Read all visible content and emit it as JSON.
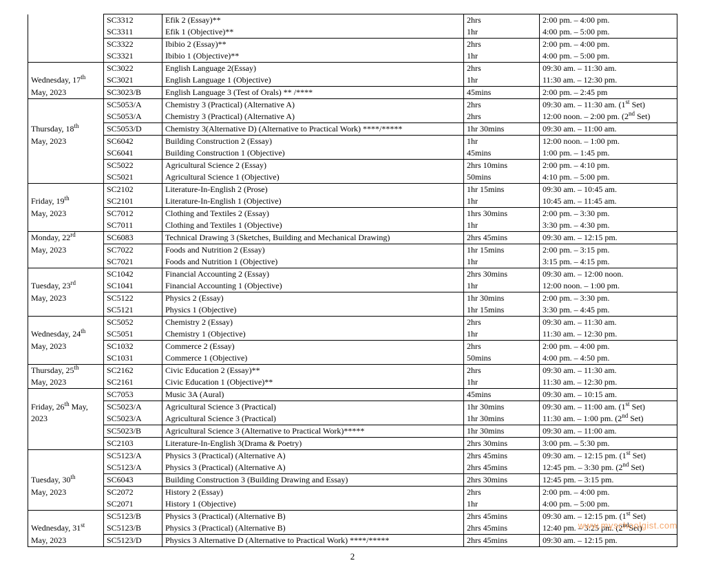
{
  "table": {
    "columns": [
      "date",
      "code",
      "subject",
      "duration",
      "time"
    ],
    "col_classes": [
      "col-date",
      "col-code",
      "col-subj",
      "col-dur",
      "col-time"
    ]
  },
  "rows": [
    {
      "date": "",
      "code": "SC3312",
      "subject": "Efik 2 (Essay)**",
      "dur": "2hrs",
      "time": "2:00 pm. – 4:00 pm.",
      "date_top": false,
      "date_bot": false
    },
    {
      "date": "",
      "code": "SC3311",
      "subject": "Efik 1 (Objective)**",
      "dur": "1hr",
      "time": "4:00 pm. – 5:00 pm.",
      "date_top": false,
      "date_bot": false,
      "group_end": true
    },
    {
      "date": "",
      "code": "SC3322",
      "subject": "Ibibio 2 (Essay)**",
      "dur": "2hrs",
      "time": "2:00 pm. – 4:00 pm.",
      "date_top": false,
      "date_bot": false
    },
    {
      "date": "",
      "code": "SC3321",
      "subject": "Ibibio 1 (Objective)**",
      "dur": "1hr",
      "time": "4:00 pm. – 5:00 pm.",
      "date_top": false,
      "date_bot": true,
      "group_end": true
    },
    {
      "date": "",
      "code": "SC3022",
      "subject": "English Language 2(Essay)",
      "dur": "2hrs",
      "time": "09:30 am. – 11:30 am.",
      "date_top": true,
      "date_bot": false
    },
    {
      "date": "Wednesday, 17<sup>th</sup>",
      "code": "SC3021",
      "subject": "English Language 1 (Objective)",
      "dur": "1hr",
      "time": "11:30 am. – 12:30 pm.",
      "date_top": false,
      "date_bot": false,
      "group_end": true
    },
    {
      "date": "May, 2023",
      "code": "SC3023/B",
      "subject": "English Language 3 (Test of Orals) ** /****",
      "dur": "45mins",
      "time": "2:00 pm. – 2:45 pm",
      "date_top": false,
      "date_bot": true,
      "group_end": true
    },
    {
      "date": "",
      "code": "SC5053/A",
      "subject": "Chemistry 3 (Practical) (Alternative A)",
      "dur": "2hrs",
      "time": "09:30 am. – 11:30 am. (1<sup>st</sup> Set)",
      "date_top": true,
      "date_bot": false
    },
    {
      "date": "",
      "code": "SC5053/A",
      "subject": "Chemistry 3 (Practical) (Alternative A)",
      "dur": "2hrs",
      "time": "12:00 noon. – 2:00 pm. (2<sup>nd</sup> Set)",
      "date_top": false,
      "date_bot": false,
      "group_end": true
    },
    {
      "date": "Thursday, 18<sup>th</sup>",
      "code": "SC5053/D",
      "subject": "Chemistry 3(Alternative D) (Alternative to Practical Work) ****/*****",
      "dur": "1hr 30mins",
      "time": "09:30 am. – 11:00 am.",
      "date_top": false,
      "date_bot": false,
      "group_end": true
    },
    {
      "date": "May, 2023",
      "code": "SC6042",
      "subject": "Building Construction 2 (Essay)",
      "dur": "1hr",
      "time": "12:00 noon. – 1:00 pm.",
      "date_top": false,
      "date_bot": false
    },
    {
      "date": "",
      "code": "SC6041",
      "subject": "Building Construction 1 (Objective)",
      "dur": "45mins",
      "time": "1:00 pm. – 1:45 pm.",
      "date_top": false,
      "date_bot": false,
      "group_end": true
    },
    {
      "date": "",
      "code": "SC5022",
      "subject": "Agricultural Science 2 (Essay)",
      "dur": "2hrs 10mins",
      "time": "2:00 pm. – 4:10 pm.",
      "date_top": false,
      "date_bot": false
    },
    {
      "date": "",
      "code": "SC5021",
      "subject": "Agricultural Science 1 (Objective)",
      "dur": "50mins",
      "time": "4:10 pm. – 5:00 pm.",
      "date_top": false,
      "date_bot": true,
      "group_end": true
    },
    {
      "date": "",
      "code": "SC2102",
      "subject": "Literature-In-English 2 (Prose)",
      "dur": "1hr 15mins",
      "time": "09:30 am. – 10:45 am.",
      "date_top": true,
      "date_bot": false
    },
    {
      "date": "Friday, 19<sup>th</sup>",
      "code": "SC2101",
      "subject": "Literature-In-English 1 (Objective)",
      "dur": "1hr",
      "time": "10:45 am. – 11:45 am.",
      "date_top": false,
      "date_bot": false,
      "group_end": true
    },
    {
      "date": "May, 2023",
      "code": "SC7012",
      "subject": "Clothing and Textiles 2 (Essay)",
      "dur": "1hrs 30mins",
      "time": "2:00 pm. – 3:30 pm.",
      "date_top": false,
      "date_bot": false
    },
    {
      "date": "",
      "code": "SC7011",
      "subject": "Clothing and Textiles 1 (Objective)",
      "dur": "1hr",
      "time": "3:30 pm. – 4:30 pm.",
      "date_top": false,
      "date_bot": true,
      "group_end": true
    },
    {
      "date": "Monday, 22<sup>rd</sup>",
      "code": "SC6083",
      "subject": "Technical Drawing 3 (Sketches, Building and Mechanical Drawing)",
      "dur": "2hrs 45mins",
      "time": "09:30 am. – 12:15 pm.",
      "date_top": true,
      "date_bot": false,
      "group_end": true
    },
    {
      "date": "May, 2023",
      "code": "SC7022",
      "subject": "Foods and Nutrition 2 (Essay)",
      "dur": "1hr 15mins",
      "time": "2:00 pm. – 3:15 pm.",
      "date_top": false,
      "date_bot": false
    },
    {
      "date": "",
      "code": "SC7021",
      "subject": "Foods and Nutrition 1 (Objective)",
      "dur": "1hr",
      "time": "3:15 pm. – 4:15 pm.",
      "date_top": false,
      "date_bot": true,
      "group_end": true
    },
    {
      "date": "",
      "code": "SC1042",
      "subject": "Financial Accounting 2 (Essay)",
      "dur": "2hrs 30mins",
      "time": "09:30 am. – 12:00 noon.",
      "date_top": true,
      "date_bot": false
    },
    {
      "date": "Tuesday, 23<sup>rd</sup>",
      "code": "SC1041",
      "subject": "Financial Accounting 1 (Objective)",
      "dur": "1hr",
      "time": "12:00 noon. – 1:00 pm.",
      "date_top": false,
      "date_bot": false,
      "group_end": true
    },
    {
      "date": "May, 2023",
      "code": "SC5122",
      "subject": "Physics 2 (Essay)",
      "dur": "1hr 30mins",
      "time": "2:00 pm. – 3:30 pm.",
      "date_top": false,
      "date_bot": false
    },
    {
      "date": "",
      "code": "SC5121",
      "subject": "Physics 1 (Objective)",
      "dur": "1hr 15mins",
      "time": "3:30 pm. – 4:45 pm.",
      "date_top": false,
      "date_bot": true,
      "group_end": true
    },
    {
      "date": "",
      "code": "SC5052",
      "subject": "Chemistry 2 (Essay)",
      "dur": "2hrs",
      "time": "09:30 am. – 11:30 am.",
      "date_top": true,
      "date_bot": false
    },
    {
      "date": "Wednesday, 24<sup>th</sup>",
      "code": "SC5051",
      "subject": "Chemistry 1 (Objective)",
      "dur": "1hr",
      "time": "11:30 am. – 12:30 pm.",
      "date_top": false,
      "date_bot": false,
      "group_end": true
    },
    {
      "date": "May, 2023",
      "code": "SC1032",
      "subject": "Commerce 2 (Essay)",
      "dur": "2hrs",
      "time": "2:00 pm. – 4:00 pm.",
      "date_top": false,
      "date_bot": false
    },
    {
      "date": "",
      "code": "SC1031",
      "subject": "Commerce 1 (Objective)",
      "dur": "50mins",
      "time": "4:00 pm. – 4:50 pm.",
      "date_top": false,
      "date_bot": true,
      "group_end": true
    },
    {
      "date": "Thursday, 25<sup>th</sup>",
      "code": "SC2162",
      "subject": "Civic Education 2 (Essay)**",
      "dur": "2hrs",
      "time": "09:30 am. – 11:30 am.",
      "date_top": true,
      "date_bot": false
    },
    {
      "date": "May, 2023",
      "code": "SC2161",
      "subject": "Civic Education 1 (Objective)**",
      "dur": "1hr",
      "time": "11:30 am. – 12:30 pm.",
      "date_top": false,
      "date_bot": true,
      "group_end": true
    },
    {
      "date": "",
      "code": "SC7053",
      "subject": "Music 3A (Aural)",
      "dur": "45mins",
      "time": "09:30 am. – 10:15 am.",
      "date_top": true,
      "date_bot": false,
      "group_end": true
    },
    {
      "date": "Friday, 26<sup>th</sup> May,",
      "code": "SC5023/A",
      "subject": "Agricultural Science 3 (Practical)",
      "dur": "1hr 30mins",
      "time": "09:30 am. – 11:00 am. (1<sup>st</sup> Set)",
      "date_top": false,
      "date_bot": false
    },
    {
      "date": "2023",
      "code": "SC5023/A",
      "subject": "Agricultural Science 3 (Practical)",
      "dur": "1hr 30mins",
      "time": "11:30 am. – 1:00 pm. (2<sup>nd</sup> Set)",
      "date_top": false,
      "date_bot": false,
      "group_end": true
    },
    {
      "date": "",
      "code": "SC5023/B",
      "subject": "Agricultural Science 3 (Alternative to Practical Work)*****",
      "dur": "1hr 30mins",
      "time": "09:30 am. – 11:00 am.",
      "date_top": false,
      "date_bot": false,
      "group_end": true
    },
    {
      "date": "",
      "code": "SC2103",
      "subject": "Literature-In-English 3(Drama & Poetry)",
      "dur": "2hrs 30mins",
      "time": "3:00 pm. – 5:30 pm.",
      "date_top": false,
      "date_bot": true,
      "group_end": true
    },
    {
      "date": "",
      "code": "SC5123/A",
      "subject": "Physics 3 (Practical) (Alternative A)",
      "dur": "2hrs 45mins",
      "time": "09:30 am. – 12:15 pm. (1<sup>st</sup> Set)",
      "date_top": true,
      "date_bot": false
    },
    {
      "date": "",
      "code": "SC5123/A",
      "subject": "Physics 3 (Practical) (Alternative A)",
      "dur": "2hrs 45mins",
      "time": "12:45 pm. – 3:30 pm. (2<sup>nd</sup> Set)",
      "date_top": false,
      "date_bot": false,
      "group_end": true
    },
    {
      "date": "Tuesday, 30<sup>th</sup>",
      "code": "SC6043",
      "subject": "Building Construction 3 (Building Drawing and Essay)",
      "dur": "2hrs 30mins",
      "time": "12:45 pm. – 3:15 pm.",
      "date_top": false,
      "date_bot": false,
      "group_end": true
    },
    {
      "date": "May, 2023",
      "code": "SC2072",
      "subject": "History 2 (Essay)",
      "dur": "2hrs",
      "time": "2:00 pm. – 4:00 pm.",
      "date_top": false,
      "date_bot": false
    },
    {
      "date": "",
      "code": "SC2071",
      "subject": "History 1 (Objective)",
      "dur": "1hr",
      "time": "4:00 pm. – 5:00 pm.",
      "date_top": false,
      "date_bot": true,
      "group_end": true
    },
    {
      "date": "",
      "code": "SC5123/B",
      "subject": "Physics 3 (Practical) (Alternative B)",
      "dur": "2hrs 45mins",
      "time": "09:30 am. – 12:15 pm. (1<sup>st</sup> Set)",
      "date_top": true,
      "date_bot": false
    },
    {
      "date": "Wednesday, 31<sup>st</sup>",
      "code": "SC5123/B",
      "subject": "Physics 3 (Practical) (Alternative B)",
      "dur": "2hrs 45mins",
      "time": "12:40 pm. – 3:25 pm. (2<sup>nd</sup>Set)",
      "date_top": false,
      "date_bot": false,
      "group_end": true
    },
    {
      "date": "May, 2023",
      "code": "SC5123/D",
      "subject": "Physics 3 Alternative D (Alternative to Practical Work) ****/*****",
      "dur": "2hrs 45mins",
      "time": "09:30 am. – 12:15 pm.",
      "date_top": false,
      "date_bot": true,
      "group_end": true
    }
  ],
  "page_number": "2",
  "watermark": "www.myschoolgist.com"
}
